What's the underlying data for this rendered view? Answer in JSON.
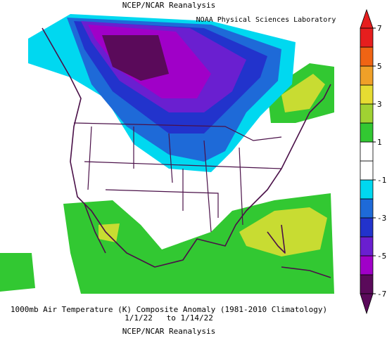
{
  "header": {
    "title": "NCEP/NCAR Reanalysis",
    "credit": "NOAA Physical Sciences Laboratory"
  },
  "footer": {
    "caption": "1000mb Air Temperature (K) Composite Anomaly (1981-2010 Climatology)",
    "dates": "1/1/22   to 1/14/22",
    "source": "NCEP/NCAR Reanalysis"
  },
  "colorbar": {
    "range": [
      -7,
      7
    ],
    "ticks": [
      7,
      5,
      3,
      1,
      -1,
      -3,
      -5,
      -7
    ],
    "colors": [
      "#5a0a5a",
      "#a000c8",
      "#6a1fd0",
      "#2233cc",
      "#1e6ad8",
      "#00d8f0",
      "#ffffff",
      "#ffffff",
      "#32c832",
      "#a0d232",
      "#e6dc32",
      "#f0a028",
      "#f06414",
      "#e61e1e"
    ]
  }
}
